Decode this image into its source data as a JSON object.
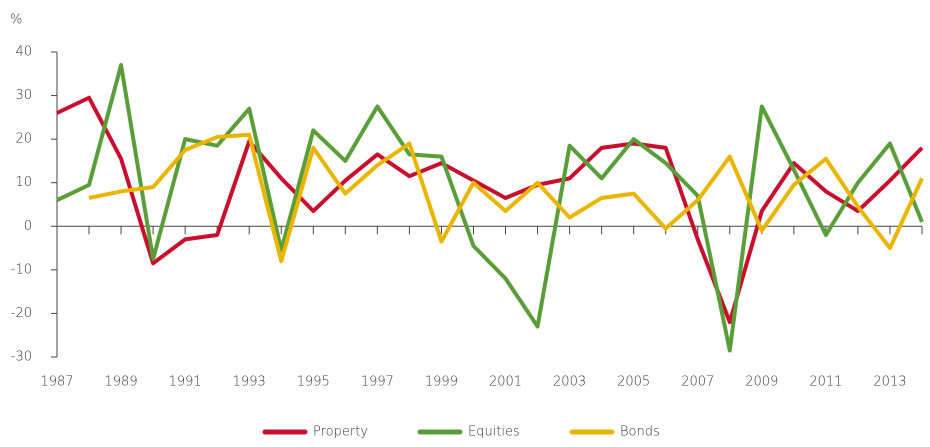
{
  "chart_data": {
    "type": "line",
    "y_label": "%",
    "x": [
      1987,
      1988,
      1989,
      1990,
      1991,
      1992,
      1993,
      1994,
      1995,
      1996,
      1997,
      1998,
      1999,
      2000,
      2001,
      2002,
      2003,
      2004,
      2005,
      2006,
      2007,
      2008,
      2009,
      2010,
      2011,
      2012,
      2013,
      2014
    ],
    "xlim": [
      1987,
      2014
    ],
    "xticks": [
      1987,
      1989,
      1991,
      1993,
      1995,
      1997,
      1999,
      2001,
      2003,
      2005,
      2007,
      2009,
      2011,
      2013
    ],
    "ylim": [
      -30,
      40
    ],
    "yticks": [
      -30,
      -20,
      -10,
      0,
      10,
      20,
      30,
      40
    ],
    "legend": "bottom",
    "series": [
      {
        "name": "Property",
        "color": "#c8102e",
        "values": [
          26,
          29.5,
          15.5,
          -8.5,
          -3,
          -2,
          19.5,
          11,
          3.5,
          10.5,
          16.5,
          11.5,
          14.5,
          10.5,
          6.5,
          9.5,
          11,
          18,
          19,
          18,
          -3,
          -22,
          3.5,
          14.5,
          8,
          3.5,
          10.5,
          18
        ]
      },
      {
        "name": "Equities",
        "color": "#5a9e3a",
        "values": [
          6,
          9.5,
          37,
          -7.5,
          20,
          18.5,
          27,
          -5.5,
          22,
          15,
          27.5,
          16.5,
          16,
          -4.5,
          -12,
          -23,
          18.5,
          11,
          20,
          14.5,
          7,
          -28.5,
          27.5,
          13,
          -2,
          10,
          19,
          1
        ]
      },
      {
        "name": "Bonds",
        "color": "#e9b500",
        "values": [
          null,
          6.5,
          8,
          9,
          17.5,
          20.5,
          21,
          -8,
          18,
          7.5,
          14,
          19,
          -3.5,
          10,
          3.5,
          10,
          2,
          6.5,
          7.5,
          -0.5,
          6,
          16,
          -1,
          9.5,
          15.5,
          4.5,
          -5,
          11
        ]
      }
    ]
  }
}
